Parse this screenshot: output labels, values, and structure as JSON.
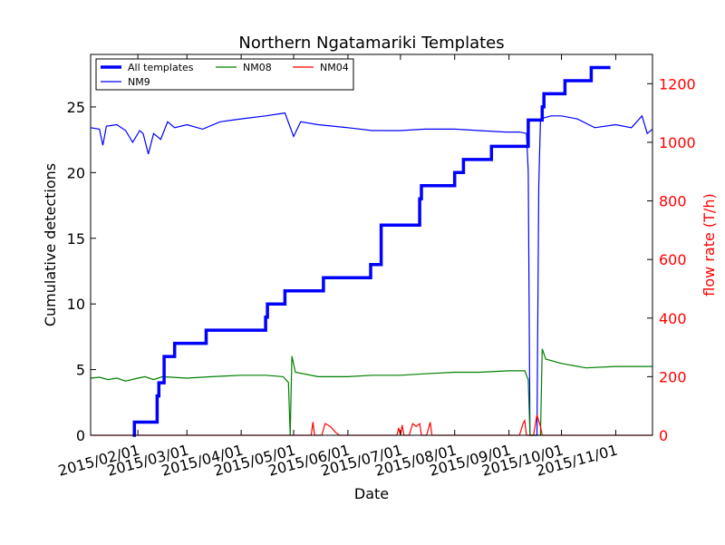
{
  "chart_data": {
    "type": "line",
    "title": "Northern Ngatamariki Templates",
    "xlabel": "Date",
    "ylabel_left": "Cumulative detections",
    "ylabel_right": "flow rate (T/h)",
    "x_range": [
      "2015-01-05",
      "2015-11-22"
    ],
    "xticks": [
      "2015/02/01",
      "2015/03/01",
      "2015/04/01",
      "2015/05/01",
      "2015/06/01",
      "2015/07/01",
      "2015/08/01",
      "2015/09/01",
      "2015/10/01",
      "2015/11/01"
    ],
    "ylim_left": [
      0,
      29
    ],
    "yticks_left": [
      "0",
      "5",
      "10",
      "15",
      "20",
      "25"
    ],
    "ylim_right": [
      0,
      1300
    ],
    "yticks_right": [
      "0",
      "200",
      "400",
      "600",
      "800",
      "1000",
      "1200"
    ],
    "legend_placement": "upper-left",
    "legend": [
      "All templates",
      "NM9",
      "NM08",
      "NM04"
    ],
    "colors": {
      "all": "#0000ff",
      "nm9": "#0000ff",
      "nm08": "#007f00",
      "nm04": "#ff0000",
      "right_axis": "#ff0000"
    },
    "series": [
      {
        "name": "All templates",
        "axis": "left",
        "style": "step",
        "points": [
          [
            "2015-01-29",
            0
          ],
          [
            "2015-01-30",
            1
          ],
          [
            "2015-02-12",
            3
          ],
          [
            "2015-02-13",
            4
          ],
          [
            "2015-02-16",
            6
          ],
          [
            "2015-02-22",
            7
          ],
          [
            "2015-03-12",
            8
          ],
          [
            "2015-04-15",
            9
          ],
          [
            "2015-04-16",
            10
          ],
          [
            "2015-04-26",
            11
          ],
          [
            "2015-05-18",
            12
          ],
          [
            "2015-06-14",
            13
          ],
          [
            "2015-06-20",
            16
          ],
          [
            "2015-07-12",
            18
          ],
          [
            "2015-07-13",
            19
          ],
          [
            "2015-08-01",
            20
          ],
          [
            "2015-08-06",
            21
          ],
          [
            "2015-08-22",
            22
          ],
          [
            "2015-09-12",
            24
          ],
          [
            "2015-09-20",
            25
          ],
          [
            "2015-09-21",
            26
          ],
          [
            "2015-10-03",
            27
          ],
          [
            "2015-10-18",
            28
          ],
          [
            "2015-10-29",
            28
          ]
        ]
      },
      {
        "name": "NM9",
        "axis": "right",
        "points": [
          [
            "2015-01-05",
            1050
          ],
          [
            "2015-01-10",
            1045
          ],
          [
            "2015-01-12",
            990
          ],
          [
            "2015-01-14",
            1055
          ],
          [
            "2015-01-20",
            1060
          ],
          [
            "2015-01-25",
            1040
          ],
          [
            "2015-01-29",
            1000
          ],
          [
            "2015-02-02",
            1040
          ],
          [
            "2015-02-04",
            1030
          ],
          [
            "2015-02-07",
            960
          ],
          [
            "2015-02-10",
            1030
          ],
          [
            "2015-02-14",
            1010
          ],
          [
            "2015-02-18",
            1070
          ],
          [
            "2015-02-22",
            1050
          ],
          [
            "2015-03-01",
            1060
          ],
          [
            "2015-03-10",
            1045
          ],
          [
            "2015-03-20",
            1070
          ],
          [
            "2015-04-01",
            1080
          ],
          [
            "2015-04-15",
            1090
          ],
          [
            "2015-04-26",
            1100
          ],
          [
            "2015-05-01",
            1020
          ],
          [
            "2015-05-05",
            1070
          ],
          [
            "2015-05-15",
            1060
          ],
          [
            "2015-06-01",
            1050
          ],
          [
            "2015-06-15",
            1040
          ],
          [
            "2015-07-01",
            1040
          ],
          [
            "2015-07-15",
            1045
          ],
          [
            "2015-08-01",
            1045
          ],
          [
            "2015-08-15",
            1040
          ],
          [
            "2015-08-30",
            1035
          ],
          [
            "2015-09-07",
            1035
          ],
          [
            "2015-09-11",
            1030
          ],
          [
            "2015-09-12",
            900
          ],
          [
            "2015-09-13",
            0
          ],
          [
            "2015-09-17",
            0
          ],
          [
            "2015-09-18",
            850
          ],
          [
            "2015-09-19",
            1080
          ],
          [
            "2015-09-25",
            1090
          ],
          [
            "2015-10-01",
            1090
          ],
          [
            "2015-10-10",
            1080
          ],
          [
            "2015-10-20",
            1050
          ],
          [
            "2015-11-01",
            1060
          ],
          [
            "2015-11-10",
            1050
          ],
          [
            "2015-11-16",
            1090
          ],
          [
            "2015-11-19",
            1030
          ],
          [
            "2015-11-22",
            1045
          ]
        ]
      },
      {
        "name": "NM08",
        "axis": "right",
        "points": [
          [
            "2015-01-05",
            195
          ],
          [
            "2015-01-10",
            198
          ],
          [
            "2015-01-15",
            190
          ],
          [
            "2015-01-20",
            195
          ],
          [
            "2015-01-25",
            185
          ],
          [
            "2015-02-01",
            195
          ],
          [
            "2015-02-05",
            200
          ],
          [
            "2015-02-10",
            190
          ],
          [
            "2015-02-15",
            200
          ],
          [
            "2015-03-01",
            195
          ],
          [
            "2015-03-15",
            200
          ],
          [
            "2015-04-01",
            205
          ],
          [
            "2015-04-15",
            205
          ],
          [
            "2015-04-25",
            200
          ],
          [
            "2015-04-28",
            180
          ],
          [
            "2015-04-29",
            0
          ],
          [
            "2015-04-30",
            270
          ],
          [
            "2015-05-02",
            215
          ],
          [
            "2015-05-15",
            200
          ],
          [
            "2015-06-01",
            200
          ],
          [
            "2015-06-15",
            205
          ],
          [
            "2015-07-01",
            205
          ],
          [
            "2015-07-15",
            210
          ],
          [
            "2015-08-01",
            215
          ],
          [
            "2015-08-15",
            215
          ],
          [
            "2015-09-01",
            220
          ],
          [
            "2015-09-10",
            220
          ],
          [
            "2015-09-12",
            190
          ],
          [
            "2015-09-13",
            0
          ],
          [
            "2015-09-19",
            0
          ],
          [
            "2015-09-20",
            295
          ],
          [
            "2015-09-22",
            260
          ],
          [
            "2015-10-01",
            245
          ],
          [
            "2015-10-15",
            230
          ],
          [
            "2015-11-01",
            235
          ],
          [
            "2015-11-22",
            235
          ]
        ]
      },
      {
        "name": "NM04",
        "axis": "right",
        "points": [
          [
            "2015-01-05",
            0
          ],
          [
            "2015-05-11",
            0
          ],
          [
            "2015-05-12",
            45
          ],
          [
            "2015-05-13",
            0
          ],
          [
            "2015-05-17",
            0
          ],
          [
            "2015-05-19",
            40
          ],
          [
            "2015-05-22",
            30
          ],
          [
            "2015-05-25",
            10
          ],
          [
            "2015-05-27",
            0
          ],
          [
            "2015-06-29",
            0
          ],
          [
            "2015-06-30",
            25
          ],
          [
            "2015-07-01",
            0
          ],
          [
            "2015-07-02",
            35
          ],
          [
            "2015-07-03",
            0
          ],
          [
            "2015-07-06",
            0
          ],
          [
            "2015-07-08",
            40
          ],
          [
            "2015-07-10",
            30
          ],
          [
            "2015-07-12",
            40
          ],
          [
            "2015-07-13",
            0
          ],
          [
            "2015-07-16",
            0
          ],
          [
            "2015-07-18",
            45
          ],
          [
            "2015-07-19",
            0
          ],
          [
            "2015-09-07",
            0
          ],
          [
            "2015-09-09",
            40
          ],
          [
            "2015-09-10",
            50
          ],
          [
            "2015-09-11",
            0
          ],
          [
            "2015-09-15",
            0
          ],
          [
            "2015-09-17",
            70
          ],
          [
            "2015-09-19",
            30
          ],
          [
            "2015-09-20",
            0
          ],
          [
            "2015-11-22",
            0
          ]
        ]
      }
    ]
  }
}
